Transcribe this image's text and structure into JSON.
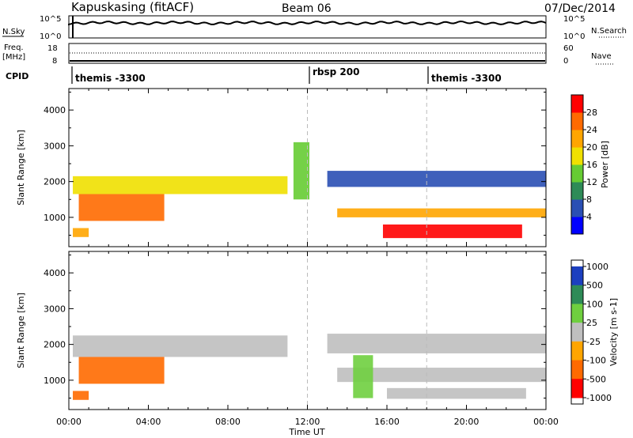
{
  "header": {
    "station": "Kapuskasing (fitACF)",
    "beam": "Beam 06",
    "date": "07/Dec/2014"
  },
  "nsky_panel": {
    "left_label": "N.Sky",
    "right_label": "N.Search",
    "left_ticks": [
      "10^5",
      "10^0"
    ],
    "right_ticks": [
      "10^5",
      "10^0"
    ]
  },
  "freq_panel": {
    "left_label_line1": "Freq.",
    "left_label_line2": "[MHz]",
    "right_label": "Nave",
    "left_ticks": [
      "18",
      "8"
    ],
    "right_ticks": [
      "60",
      "0"
    ]
  },
  "cpid": {
    "label": "CPID",
    "segments": [
      {
        "text": "themis -3300",
        "start_hour": 0
      },
      {
        "text": "rbsp 200",
        "start_hour": 12
      },
      {
        "text": "themis -3300",
        "start_hour": 18
      }
    ]
  },
  "x_axis": {
    "title": "Time UT",
    "tick_labels": [
      "00:00",
      "04:00",
      "08:00",
      "12:00",
      "16:00",
      "20:00",
      "00:00"
    ]
  },
  "chart_data": [
    {
      "type": "heatmap",
      "parameter": "power",
      "ylabel": "Slant Range [km]",
      "yticks": [
        1000,
        2000,
        3000,
        4000
      ],
      "ylim": [
        180,
        4600
      ],
      "xlim_hours": [
        0,
        24
      ],
      "colorbar": {
        "label": "Power [dB]",
        "tick_labels": [
          "28",
          "24",
          "20",
          "16",
          "12",
          "8",
          "4"
        ],
        "colors": [
          "#0000ff",
          "#2a4fb4",
          "#2e8b57",
          "#66cc33",
          "#f0e000",
          "#ffa500",
          "#ff6a00",
          "#ff0000"
        ]
      },
      "bands": [
        {
          "t0": 0.2,
          "t1": 11.0,
          "r0": 1650,
          "r1": 2150,
          "value": 16
        },
        {
          "t0": 0.5,
          "t1": 4.8,
          "r0": 900,
          "r1": 1650,
          "value": 26
        },
        {
          "t0": 0.2,
          "t1": 1.0,
          "r0": 450,
          "r1": 700,
          "value": 22
        },
        {
          "t0": 11.3,
          "t1": 12.1,
          "r0": 1500,
          "r1": 3100,
          "value": 14
        },
        {
          "t0": 13.0,
          "t1": 24.0,
          "r0": 1850,
          "r1": 2300,
          "value": 6
        },
        {
          "t0": 13.5,
          "t1": 24.0,
          "r0": 1000,
          "r1": 1250,
          "value": 20
        },
        {
          "t0": 15.8,
          "t1": 22.8,
          "r0": 420,
          "r1": 800,
          "value": 30
        }
      ]
    },
    {
      "type": "heatmap",
      "parameter": "velocity",
      "ylabel": "Slant Range [km]",
      "yticks": [
        1000,
        2000,
        3000,
        4000
      ],
      "ylim": [
        180,
        4600
      ],
      "xlim_hours": [
        0,
        24
      ],
      "colorbar": {
        "label": "Velocity [m s-1]",
        "tick_labels": [
          "1000",
          "500",
          "100",
          "25",
          "-25",
          "-100",
          "-500",
          "-1000"
        ],
        "colors": [
          "#1c3fbf",
          "#2e8b57",
          "#6fcf3f",
          "#bfbfbf",
          "#ffa500",
          "#ff6a00",
          "#ff0000"
        ]
      },
      "bands": [
        {
          "t0": 0.2,
          "t1": 11.0,
          "r0": 1650,
          "r1": 2250,
          "value": 0
        },
        {
          "t0": 0.5,
          "t1": 4.8,
          "r0": 900,
          "r1": 1650,
          "value": -200
        },
        {
          "t0": 0.2,
          "t1": 1.0,
          "r0": 450,
          "r1": 700,
          "value": -150
        },
        {
          "t0": 13.0,
          "t1": 24.0,
          "r0": 1750,
          "r1": 2300,
          "value": 0
        },
        {
          "t0": 13.5,
          "t1": 24.0,
          "r0": 950,
          "r1": 1350,
          "value": 0
        },
        {
          "t0": 16.0,
          "t1": 23.0,
          "r0": 480,
          "r1": 780,
          "value": 0
        },
        {
          "t0": 14.3,
          "t1": 15.3,
          "r0": 500,
          "r1": 1700,
          "value": 60
        }
      ]
    }
  ]
}
